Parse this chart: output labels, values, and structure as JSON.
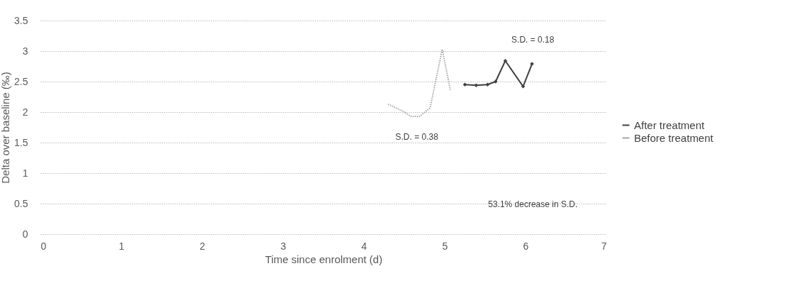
{
  "chart_data": {
    "type": "line",
    "xlabel": "Time since enrolment (d)",
    "ylabel": "Delta over baseline (‰)",
    "xlim": [
      0,
      7
    ],
    "xticks": [
      0,
      1,
      2,
      3,
      4,
      5,
      6,
      7
    ],
    "ylim": [
      0,
      3.5
    ],
    "yticks": [
      0,
      0.5,
      1,
      1.5,
      2,
      2.5,
      3,
      3.5
    ],
    "grid": "y",
    "legend": "right",
    "series": [
      {
        "name": "After treatment",
        "color": "#404040",
        "marker": "diamond",
        "line_style": "solid",
        "x": [
          5.25,
          5.39,
          5.53,
          5.63,
          5.75,
          5.97,
          6.08
        ],
        "values": [
          2.45,
          2.44,
          2.45,
          2.5,
          2.84,
          2.42,
          2.79
        ]
      },
      {
        "name": "Before treatment",
        "color": "#a6a6a6",
        "marker": "none",
        "line_style": "dotted",
        "x": [
          4.3,
          4.49,
          4.58,
          4.69,
          4.82,
          4.97,
          5.07
        ],
        "values": [
          2.13,
          2.01,
          1.93,
          1.93,
          2.07,
          3.03,
          2.36
        ]
      }
    ],
    "annotations": [
      "S.D. = 0.18",
      "S.D. = 0.38",
      "53.1% decrease in S.D."
    ]
  }
}
